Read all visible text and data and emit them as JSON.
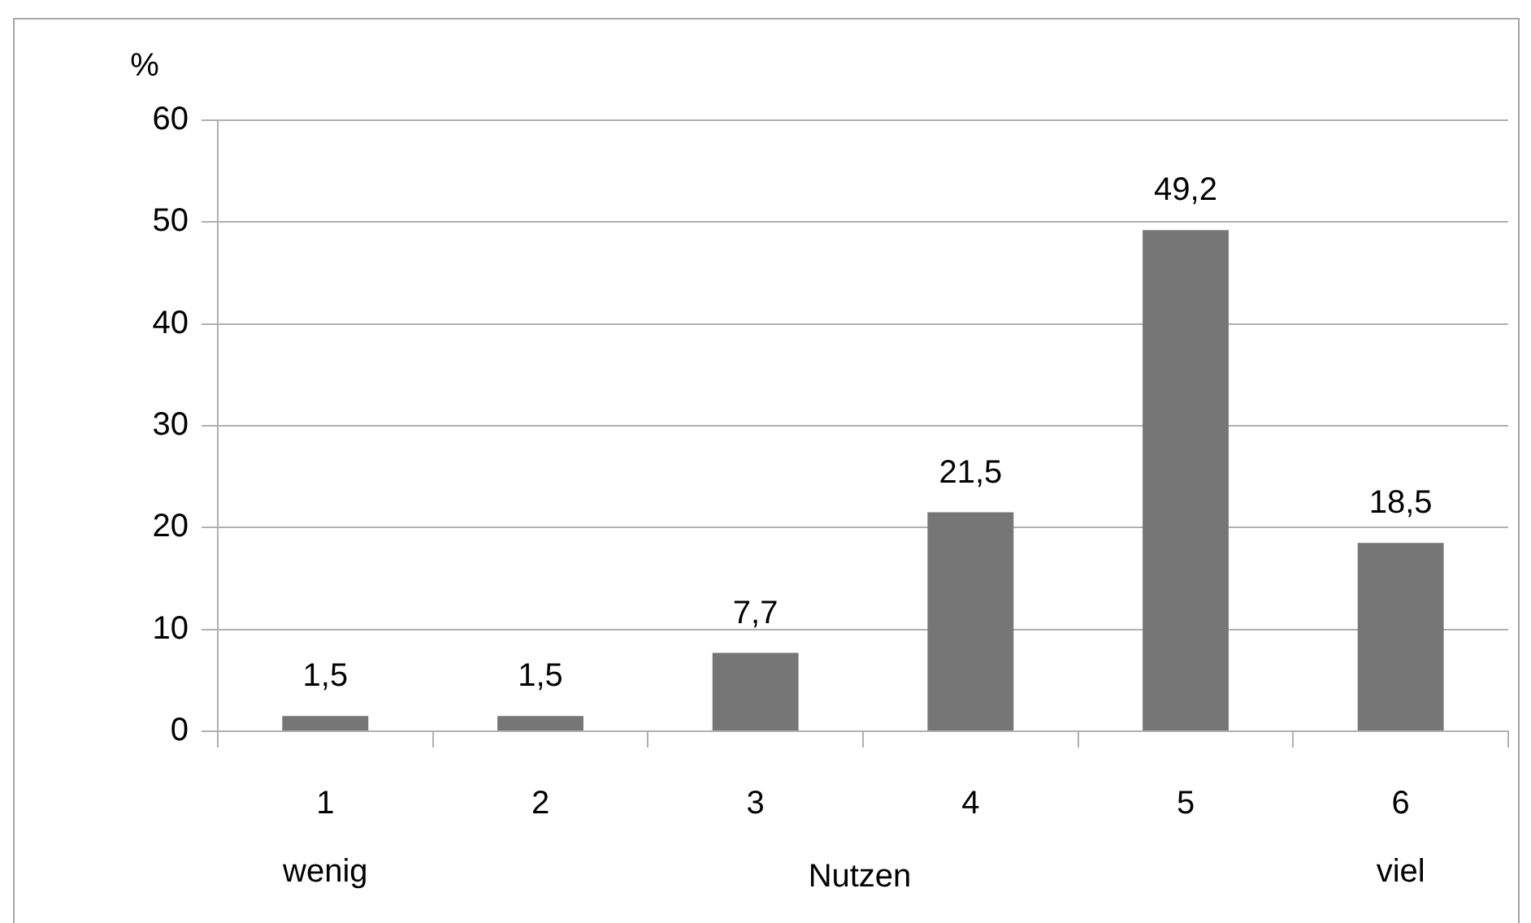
{
  "chart_data": {
    "type": "bar",
    "ylabel": "%",
    "xlabel": "Nutzen",
    "categories": [
      "1\nwenig",
      "2",
      "3",
      "4",
      "5",
      "6\nviel"
    ],
    "values": [
      1.5,
      1.5,
      7.7,
      21.5,
      49.2,
      18.5
    ],
    "value_labels": [
      "1,5",
      "1,5",
      "7,7",
      "21,5",
      "49,2",
      "18,5"
    ],
    "color": "#767676",
    "ylim": [
      0,
      60
    ],
    "yticks": [
      0,
      10,
      20,
      30,
      40,
      50,
      60
    ],
    "grid": "y",
    "legend": false
  }
}
